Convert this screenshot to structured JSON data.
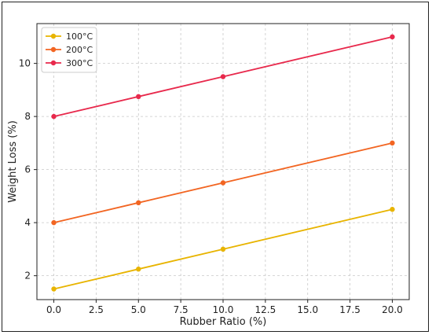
{
  "chart_data": {
    "type": "line",
    "title": "",
    "xlabel": "Rubber Ratio (%)",
    "ylabel": "Weight Loss (%)",
    "x": [
      0,
      5,
      10,
      20
    ],
    "xlim": [
      -1,
      21
    ],
    "ylim": [
      1.1,
      11.5
    ],
    "xticks": [
      0.0,
      2.5,
      5.0,
      7.5,
      10.0,
      12.5,
      15.0,
      17.5,
      20.0
    ],
    "xtick_labels": [
      "0.0",
      "2.5",
      "5.0",
      "7.5",
      "10.0",
      "12.5",
      "15.0",
      "17.5",
      "20.0"
    ],
    "yticks": [
      2,
      4,
      6,
      8,
      10
    ],
    "ytick_labels": [
      "2",
      "4",
      "6",
      "8",
      "10"
    ],
    "grid": true,
    "legend_position": "top-left",
    "series": [
      {
        "name": "100°C",
        "color": "#e8b400",
        "values": [
          1.5,
          2.25,
          3.0,
          4.5
        ]
      },
      {
        "name": "200°C",
        "color": "#f26522",
        "values": [
          4.0,
          4.75,
          5.5,
          7.0
        ]
      },
      {
        "name": "300°C",
        "color": "#e8294c",
        "values": [
          8.0,
          8.75,
          9.5,
          11.0
        ]
      }
    ]
  }
}
